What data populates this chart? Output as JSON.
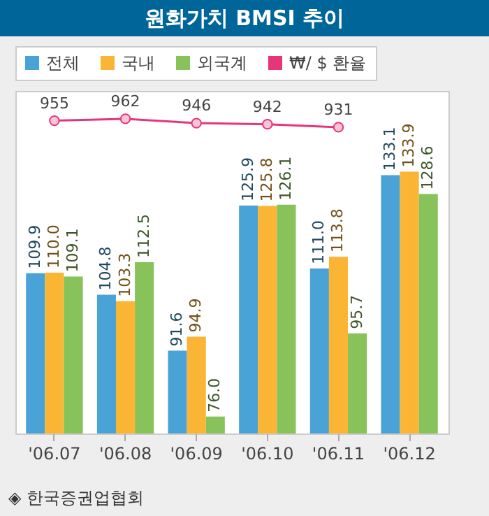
{
  "chart_data": {
    "type": "bar",
    "title": "원화가치 BMSI 추이",
    "categories": [
      "'06.07",
      "'06.08",
      "'06.09",
      "'06.10",
      "'06.11",
      "'06.12"
    ],
    "series": [
      {
        "name": "전체",
        "color": "#4aa3d6",
        "values": [
          109.9,
          104.8,
          91.6,
          125.9,
          111.0,
          133.1
        ],
        "value_labels": [
          "109.9",
          "104.8",
          "91.6",
          "125.9",
          "111.0",
          "133.1"
        ]
      },
      {
        "name": "국내",
        "color": "#fbb535",
        "values": [
          110.0,
          103.3,
          94.9,
          125.8,
          113.8,
          133.9
        ],
        "value_labels": [
          "110.0",
          "103.3",
          "94.9",
          "125.8",
          "113.8",
          "133.9"
        ]
      },
      {
        "name": "외국계",
        "color": "#88c25a",
        "values": [
          109.1,
          112.5,
          76.0,
          126.1,
          95.7,
          128.6
        ],
        "value_labels": [
          "109.1",
          "112.5",
          "76.0",
          "126.1",
          "95.7",
          "128.6"
        ]
      },
      {
        "name": "₩/ $ 환율",
        "type": "line",
        "axis": "y2",
        "color": "#e8357a",
        "values": [
          955,
          962,
          946,
          942,
          931,
          null
        ],
        "value_labels": [
          "955",
          "962",
          "946",
          "942",
          "931",
          null
        ]
      }
    ],
    "ylim": [
      72,
      153
    ],
    "y2lim": [
      -200,
      1065
    ],
    "tick_labels": "x",
    "grid": false,
    "legend": "top",
    "marker": "circle",
    "annotations": [
      "◈ 한국증권업협회"
    ]
  }
}
